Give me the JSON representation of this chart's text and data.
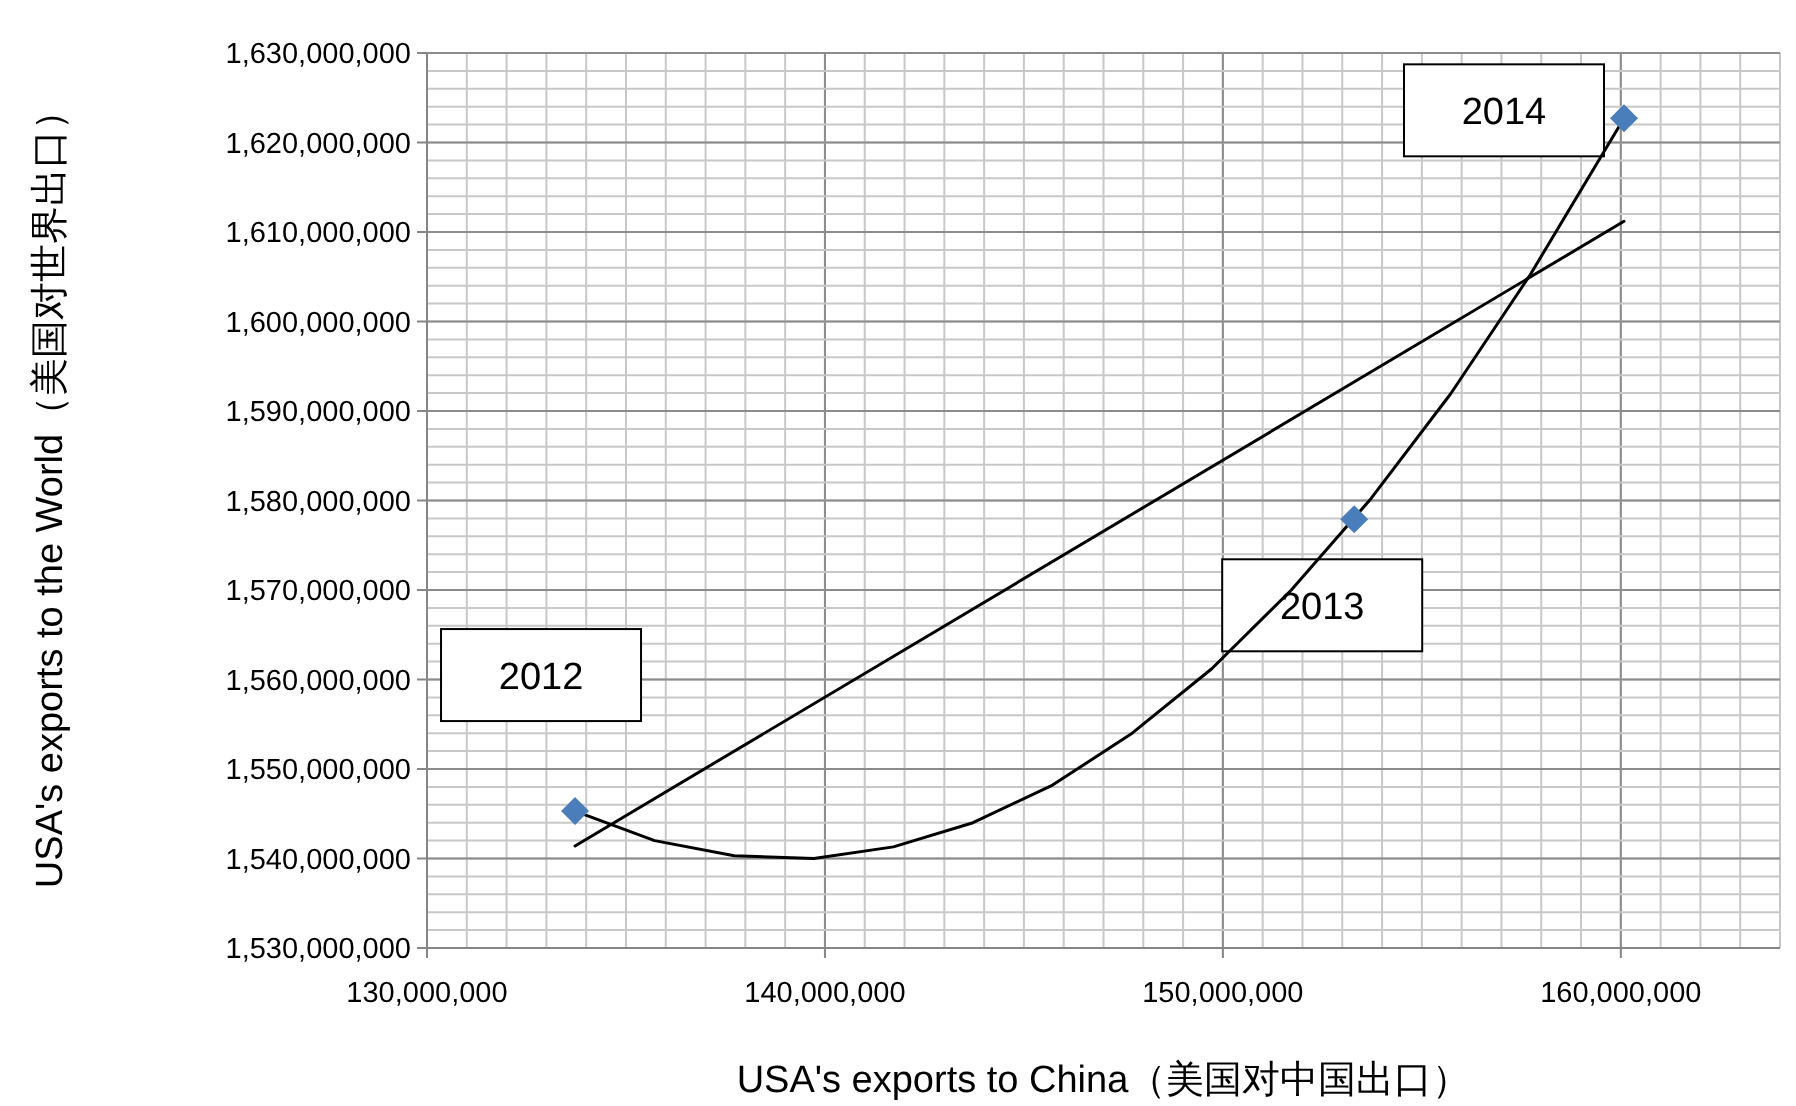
{
  "chart_data": {
    "type": "scatter",
    "xlabel": "USA's exports to China（美国对中国出口）",
    "ylabel": "USA's exports to the World（美国对世界出口）",
    "xlim": [
      130000000,
      164000000
    ],
    "ylim": [
      1530000000,
      1630000000
    ],
    "xticks": [
      {
        "value": 130000000,
        "label": "130,000,000"
      },
      {
        "value": 140000000,
        "label": "140,000,000"
      },
      {
        "value": 150000000,
        "label": "150,000,000"
      },
      {
        "value": 160000000,
        "label": "160,000,000"
      }
    ],
    "yticks": [
      {
        "value": 1530000000,
        "label": "1,530,000,000"
      },
      {
        "value": 1540000000,
        "label": "1,540,000,000"
      },
      {
        "value": 1550000000,
        "label": "1,550,000,000"
      },
      {
        "value": 1560000000,
        "label": "1,560,000,000"
      },
      {
        "value": 1570000000,
        "label": "1,570,000,000"
      },
      {
        "value": 1580000000,
        "label": "1,580,000,000"
      },
      {
        "value": 1590000000,
        "label": "1,590,000,000"
      },
      {
        "value": 1600000000,
        "label": "1,600,000,000"
      },
      {
        "value": 1610000000,
        "label": "1,610,000,000"
      },
      {
        "value": 1620000000,
        "label": "1,620,000,000"
      },
      {
        "value": 1630000000,
        "label": "1,630,000,000"
      }
    ],
    "grid": true,
    "annotations": [
      {
        "text": "2012",
        "x": 133720000,
        "y": 1545300000
      },
      {
        "text": "2013",
        "x": 153300000,
        "y": 1577900000
      },
      {
        "text": "2014",
        "x": 160080000,
        "y": 1622700000
      }
    ],
    "series": [
      {
        "type": "scatter",
        "color": "#4a7ebb",
        "marker": "diamond",
        "x": [
          133720000,
          153300000,
          160080000
        ],
        "values": [
          1545300000,
          1577900000,
          1622700000
        ]
      },
      {
        "type": "line",
        "color": "#000000",
        "x": [
          133720000,
          160080000
        ],
        "values": [
          1541400000,
          1611200000
        ]
      },
      {
        "type": "line",
        "color": "#000000",
        "x": [
          133720000,
          135720000,
          137720000,
          139720000,
          141720000,
          143720000,
          145720000,
          147720000,
          149720000,
          151720000,
          153720000,
          155720000,
          157720000,
          160080000
        ],
        "values": [
          1545300000,
          1542000000,
          1540300000,
          1540000000,
          1541300000,
          1544000000,
          1548200000,
          1554000000,
          1561200000,
          1570000000,
          1580200000,
          1591900000,
          1605200000,
          1622700000
        ]
      }
    ]
  }
}
